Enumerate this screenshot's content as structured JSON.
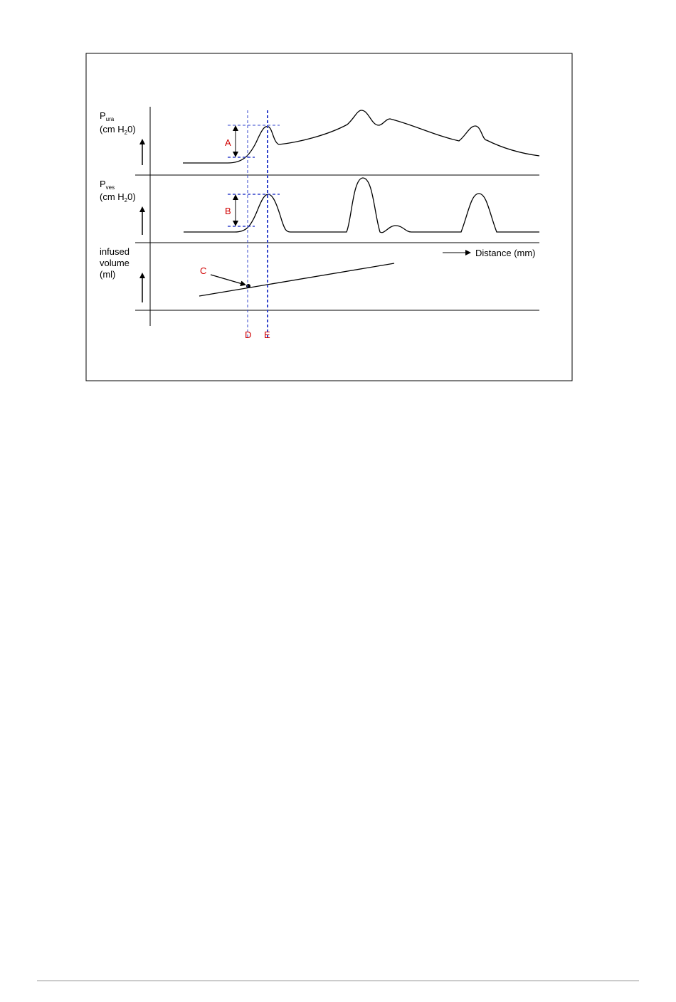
{
  "panels": [
    {
      "symbol": "P",
      "subscript": "ura",
      "unit_start": "(cm H",
      "unit_subscript": "2",
      "unit_end": "0)"
    },
    {
      "symbol": "P",
      "subscript": "ves",
      "unit_start": "(cm H",
      "unit_subscript": "2",
      "unit_end": "0)"
    },
    {
      "lines": [
        "infused",
        "volume",
        "(ml)"
      ]
    }
  ],
  "x_axis_label": "Distance (mm)",
  "markers": [
    "A",
    "B",
    "C",
    "D",
    "E"
  ]
}
